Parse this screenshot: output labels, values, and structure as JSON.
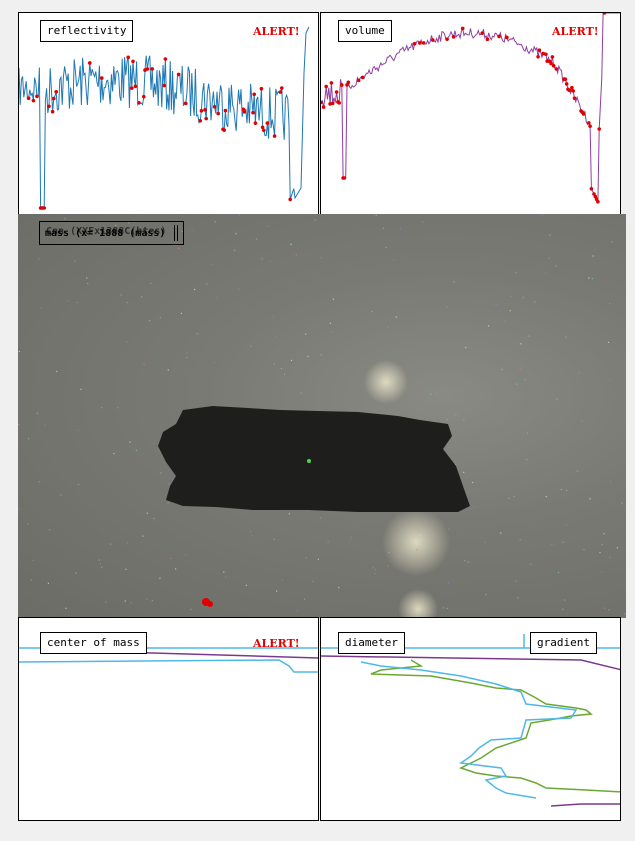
{
  "panels": {
    "reflectivity": {
      "label": "reflectivity",
      "alert": "ALERT!",
      "line_color": "#1f77b4",
      "marker_color": "#e00000"
    },
    "volume": {
      "label": "volume",
      "alert": "ALERT!",
      "line_color": "#8e3fa0",
      "marker_color": "#e00000"
    },
    "center_of_mass": {
      "label": "center of mass",
      "alert": "ALERT!"
    },
    "diameter": {
      "label": "diameter"
    },
    "gradient": {
      "label": "gradient"
    }
  },
  "video": {
    "overlay_text": "mass (x= 1888 (mass)",
    "overlay_ghost": "Cnn (XXFx1388C(btes)"
  },
  "colors": {
    "cyan": "#4fb8e8",
    "green": "#6aa832",
    "purple": "#7a3a8c",
    "alert_red": "#e00000",
    "blob": "#1e1e1c"
  }
}
